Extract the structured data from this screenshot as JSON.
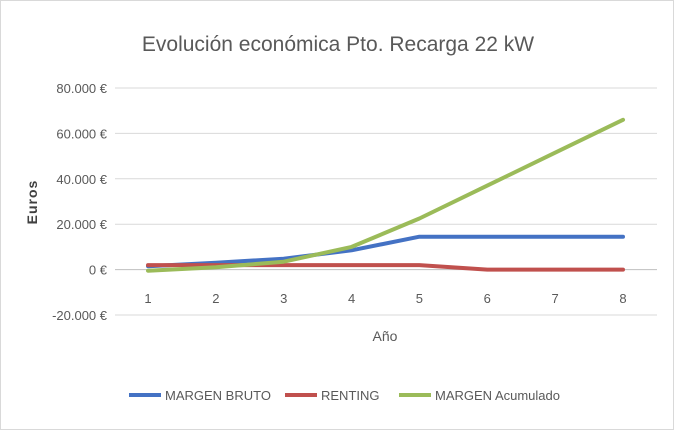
{
  "chart_data": {
    "type": "line",
    "title": "Evolución económica Pto. Recarga 22 kW",
    "xlabel": "Año",
    "ylabel": "Euros",
    "x": [
      1,
      2,
      3,
      4,
      5,
      6,
      7,
      8
    ],
    "x_tick_labels": [
      "1",
      "2",
      "3",
      "4",
      "5",
      "6",
      "7",
      "8"
    ],
    "ylim": [
      -20000,
      80000
    ],
    "y_ticks": [
      -20000,
      0,
      20000,
      40000,
      60000,
      80000
    ],
    "y_tick_labels": [
      "-20.000 €",
      "0 €",
      "20.000 €",
      "40.000 €",
      "60.000 €",
      "80.000 €"
    ],
    "grid": true,
    "legend_position": "bottom",
    "series": [
      {
        "name": "MARGEN BRUTO",
        "color": "#4472C4",
        "values": [
          1500,
          3000,
          4800,
          8500,
          14500,
          14500,
          14500,
          14500
        ]
      },
      {
        "name": "RENTING",
        "color": "#C0504D",
        "values": [
          2000,
          2000,
          2000,
          2000,
          2000,
          0,
          0,
          0
        ]
      },
      {
        "name": "MARGEN Acumulado",
        "color": "#9BBB59",
        "values": [
          -500,
          1000,
          3500,
          10000,
          22500,
          37000,
          51500,
          66000
        ]
      }
    ]
  }
}
